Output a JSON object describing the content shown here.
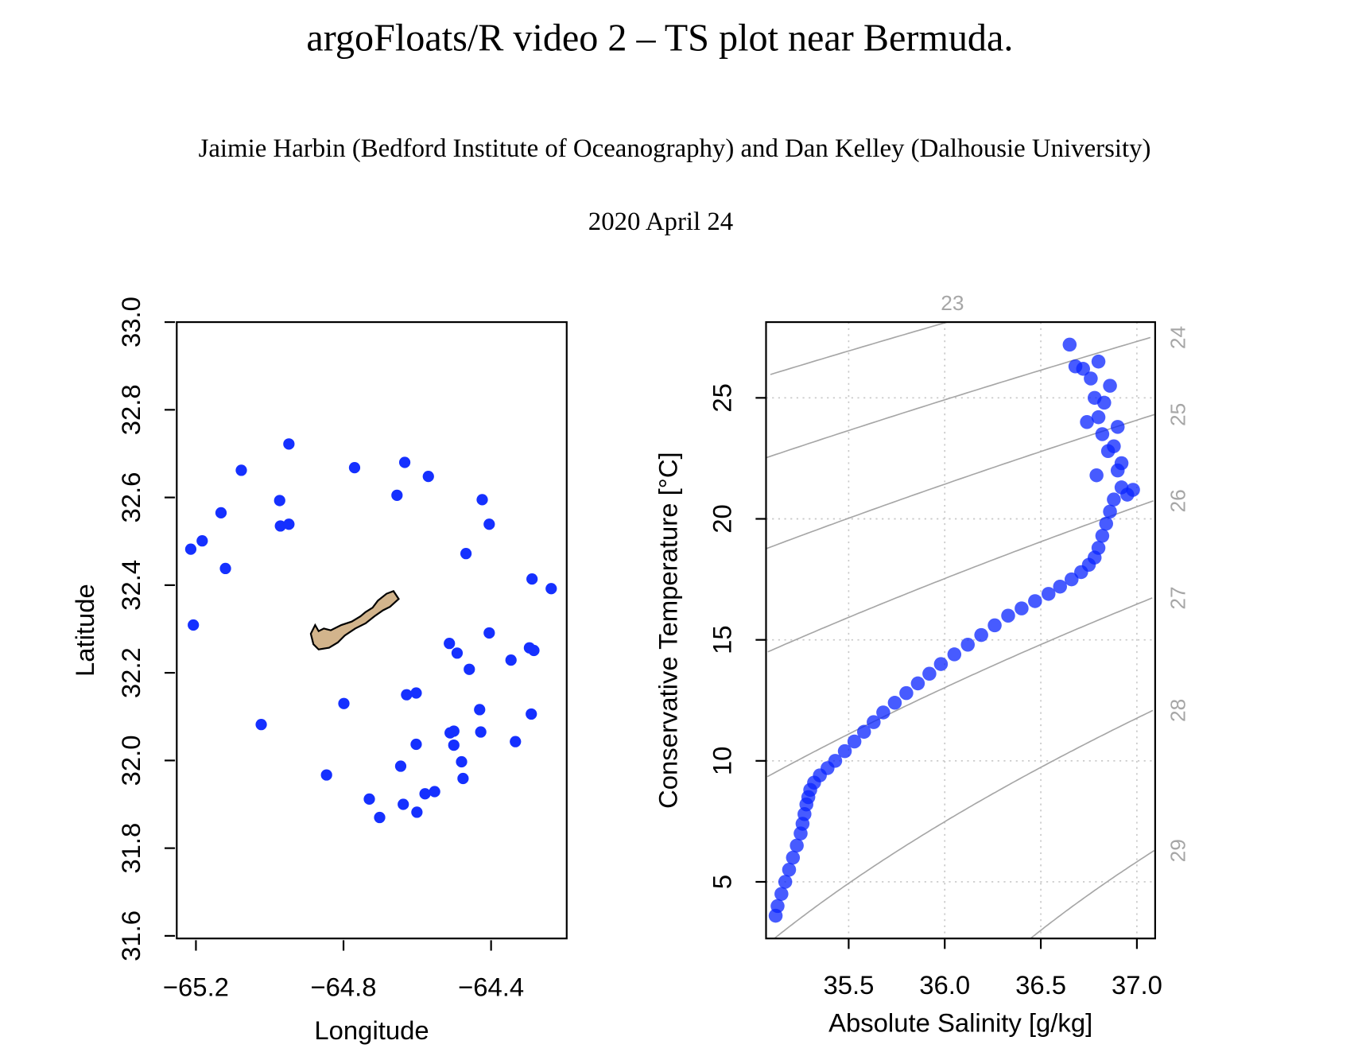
{
  "header": {
    "title": "argoFloats/R video 2 – TS plot near Bermuda.",
    "authors": "Jaimie Harbin (Bedford Institute of Oceanography) and Dan Kelley (Dalhousie University)",
    "date": "2020 April 24"
  },
  "chart_data": [
    {
      "type": "map",
      "xlabel": "Longitude",
      "ylabel": "Latitude",
      "color": "#1530ff",
      "xlim": [
        -65.252,
        -64.195
      ],
      "ylim": [
        31.594,
        33.0
      ],
      "xticks": [
        {
          "value": -65.2,
          "label": "−65.2"
        },
        {
          "value": -64.8,
          "label": "−64.8"
        },
        {
          "value": -64.4,
          "label": "−64.4"
        }
      ],
      "yticks": [
        31.6,
        31.8,
        {
          "value": 32.0,
          "label": "32.0"
        },
        32.2,
        32.4,
        32.6,
        32.8,
        {
          "value": 33.0,
          "label": "33.0"
        }
      ],
      "grid": false,
      "x": [
        -64.948,
        -65.077,
        -65.132,
        -65.183,
        -65.214,
        -65.12,
        -64.973,
        -64.971,
        -64.948,
        -64.77,
        -64.634,
        -64.655,
        -64.57,
        -64.424,
        -64.405,
        -64.468,
        -64.289,
        -64.237,
        -65.207,
        -64.405,
        -64.513,
        -64.492,
        -64.459,
        -64.346,
        -64.296,
        -64.284,
        -64.629,
        -64.603,
        -64.799,
        -65.023,
        -64.431,
        -64.291,
        -64.511,
        -64.501,
        -64.428,
        -64.334,
        -64.603,
        -64.501,
        -64.48,
        -64.645,
        -64.476,
        -64.846,
        -64.73,
        -64.553,
        -64.579,
        -64.638,
        -64.601,
        -64.702
      ],
      "values": [
        32.722,
        32.662,
        32.565,
        32.501,
        32.482,
        32.438,
        32.593,
        32.535,
        32.539,
        32.668,
        32.68,
        32.605,
        32.648,
        32.595,
        32.539,
        32.472,
        32.414,
        32.392,
        32.309,
        32.291,
        32.267,
        32.245,
        32.208,
        32.229,
        32.257,
        32.251,
        32.15,
        32.154,
        32.13,
        32.082,
        32.116,
        32.106,
        32.063,
        32.067,
        32.065,
        32.043,
        32.037,
        32.035,
        31.997,
        31.987,
        31.959,
        31.967,
        31.912,
        31.929,
        31.924,
        31.9,
        31.882,
        31.87
      ]
    },
    {
      "type": "scatter",
      "xlabel": "Absolute Salinity [g/kg]",
      "ylabel": "Conservative Temperature [°C]",
      "color": "#0a24ff",
      "xlim": [
        35.07,
        37.095
      ],
      "ylim": [
        2.66,
        28.13
      ],
      "xticks": [
        35.5,
        {
          "value": 36.0,
          "label": "36.0"
        },
        36.5,
        {
          "value": 37.0,
          "label": "37.0"
        }
      ],
      "yticks": [
        5,
        10,
        15,
        20,
        25
      ],
      "grid": true,
      "isopycnal_color": "#a6a6a6",
      "isopycnals": [
        23,
        24,
        25,
        26,
        27,
        28,
        29
      ],
      "x": [
        35.12,
        35.13,
        35.15,
        35.17,
        35.19,
        35.21,
        35.23,
        35.25,
        35.26,
        35.27,
        35.28,
        35.29,
        35.3,
        35.32,
        35.35,
        35.39,
        35.43,
        35.48,
        35.53,
        35.58,
        35.63,
        35.68,
        35.74,
        35.8,
        35.86,
        35.92,
        35.98,
        36.05,
        36.12,
        36.19,
        36.26,
        36.33,
        36.4,
        36.47,
        36.54,
        36.6,
        36.66,
        36.71,
        36.75,
        36.78,
        36.8,
        36.82,
        36.84,
        36.86,
        36.88,
        36.92,
        36.95,
        36.98,
        36.9,
        36.85,
        36.82,
        36.8,
        36.78,
        36.88,
        36.92,
        36.83,
        36.76,
        36.72,
        36.68,
        36.65,
        36.8,
        36.86,
        36.74,
        36.9,
        36.79
      ],
      "values": [
        3.6,
        4.0,
        4.5,
        5.0,
        5.5,
        6.0,
        6.5,
        7.0,
        7.4,
        7.8,
        8.2,
        8.5,
        8.8,
        9.1,
        9.4,
        9.7,
        10.0,
        10.4,
        10.8,
        11.2,
        11.6,
        12.0,
        12.4,
        12.8,
        13.2,
        13.6,
        14.0,
        14.4,
        14.8,
        15.2,
        15.6,
        16.0,
        16.3,
        16.6,
        16.9,
        17.2,
        17.5,
        17.8,
        18.1,
        18.4,
        18.8,
        19.3,
        19.8,
        20.3,
        20.8,
        21.3,
        21.0,
        21.2,
        22.0,
        22.8,
        23.5,
        24.2,
        25.0,
        23.0,
        22.3,
        24.8,
        25.8,
        26.2,
        26.3,
        27.2,
        26.5,
        25.5,
        24.0,
        23.8,
        21.8
      ]
    }
  ]
}
